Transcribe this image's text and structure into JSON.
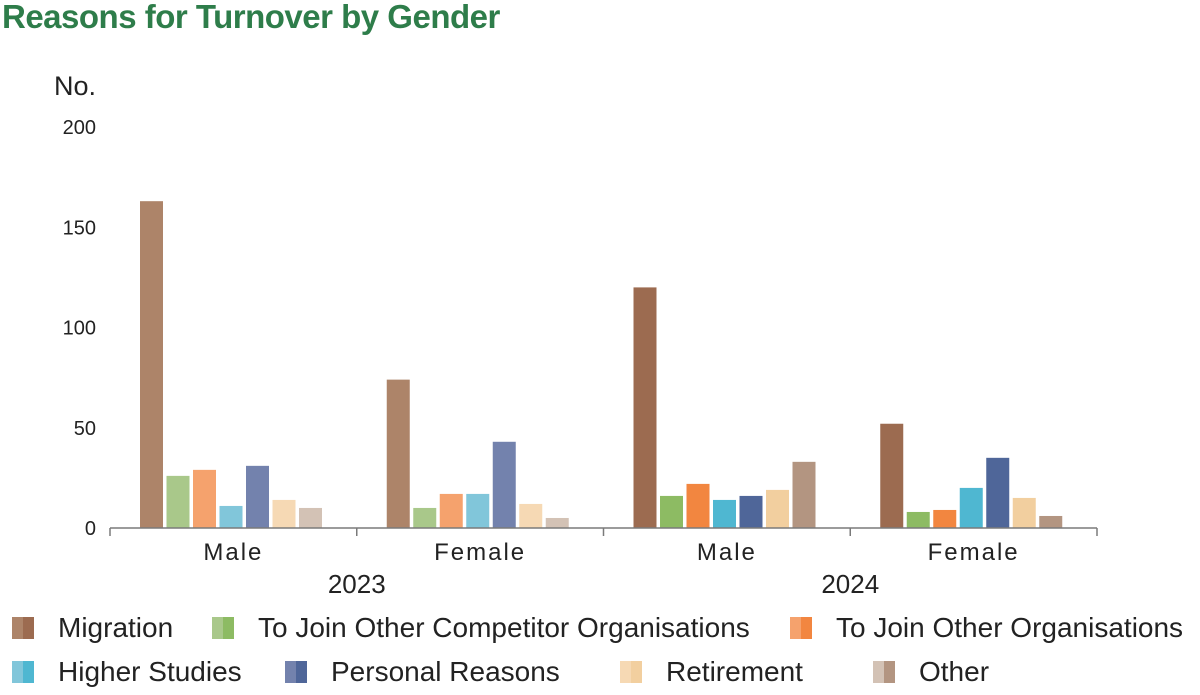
{
  "title": "Reasons for Turnover by Gender",
  "chart_data": {
    "type": "bar",
    "ylabel": "No.",
    "ylim": [
      0,
      200
    ],
    "yticks": [
      0,
      50,
      100,
      150,
      200
    ],
    "groups": [
      {
        "label": "2023",
        "categories": [
          "Male",
          "Female"
        ]
      },
      {
        "label": "2024",
        "categories": [
          "Male",
          "Female"
        ]
      }
    ],
    "series": [
      {
        "name": "Migration",
        "values": [
          163,
          74,
          120,
          52
        ]
      },
      {
        "name": "To Join Other Competitor Organisations",
        "values": [
          26,
          10,
          16,
          8
        ]
      },
      {
        "name": "To Join Other Organisations",
        "values": [
          29,
          17,
          22,
          9
        ]
      },
      {
        "name": "Higher Studies",
        "values": [
          11,
          17,
          14,
          20
        ]
      },
      {
        "name": "Personal Reasons",
        "values": [
          31,
          43,
          16,
          35
        ]
      },
      {
        "name": "Retirement",
        "values": [
          14,
          12,
          19,
          15
        ]
      },
      {
        "name": "Other",
        "values": [
          10,
          5,
          33,
          6
        ]
      }
    ],
    "colors_2023": [
      "#ad8469",
      "#a9c88a",
      "#f5a26d",
      "#81c6da",
      "#7382ad",
      "#f6d9b4",
      "#d3c2b5"
    ],
    "colors_2024": [
      "#9c6b50",
      "#8dbb63",
      "#f28640",
      "#4fb7d1",
      "#4f6699",
      "#f2cf9f",
      "#b39581"
    ],
    "legend_placement": "bottom",
    "grid": false
  }
}
